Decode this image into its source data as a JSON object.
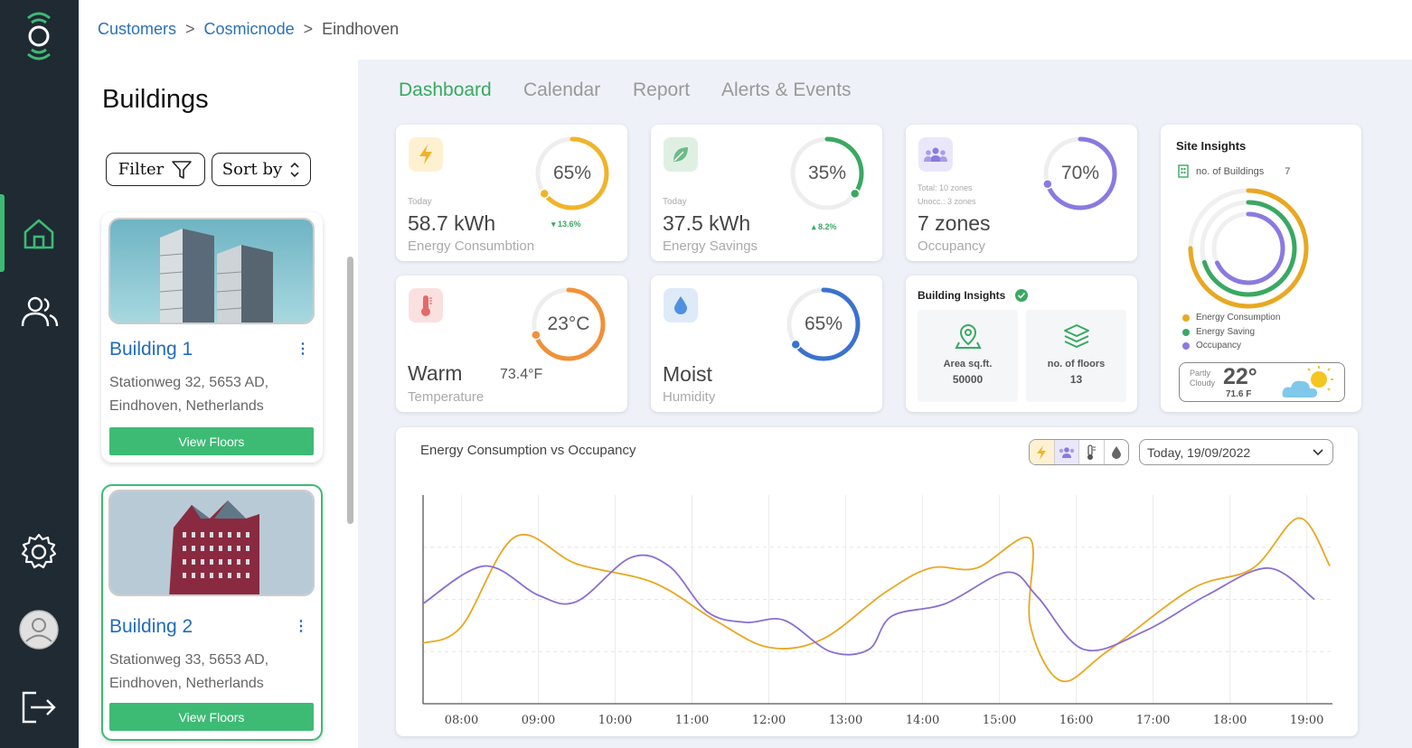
{
  "breadcrumb": {
    "items": [
      "Customers",
      "Cosmicnode",
      "Eindhoven"
    ]
  },
  "left_panel": {
    "title": "Buildings",
    "filter_label": "Filter",
    "sort_label": "Sort by",
    "buildings": [
      {
        "name": "Building 1",
        "address_line1": "Stationweg 32, 5653 AD,",
        "address_line2": "Eindhoven, Netherlands",
        "button": "View Floors"
      },
      {
        "name": "Building 2",
        "address_line1": "Stationweg 33, 5653 AD,",
        "address_line2": "Eindhoven, Netherlands",
        "button": "View Floors"
      }
    ]
  },
  "tabs": [
    "Dashboard",
    "Calendar",
    "Report",
    "Alerts & Events"
  ],
  "kpis": {
    "energy": {
      "percent_label": "65%",
      "percent": 0.65,
      "small": "Today",
      "value": "58.7 kWh",
      "label": "Energy Consumbtion",
      "delta": "13.6%",
      "color": "#f0b429"
    },
    "savings": {
      "percent_label": "35%",
      "percent": 0.35,
      "small": "Today",
      "value": "37.5 kWh",
      "label": "Energy Savings",
      "delta": "8.2%",
      "color": "#3aa862"
    },
    "occupancy": {
      "percent_label": "70%",
      "percent": 0.7,
      "small1": "Total: 10 zones",
      "small2": "Unocc.: 3 zones",
      "value": "7 zones",
      "label": "Occupancy",
      "color": "#8a7ae0"
    },
    "temperature": {
      "percent_label": "23°C",
      "percent": 0.7,
      "value": "Warm",
      "extra": "73.4°F",
      "label": "Temperature",
      "color": "#f0913a"
    },
    "humidity": {
      "percent_label": "65%",
      "percent": 0.65,
      "value": "Moist",
      "label": "Humidity",
      "color": "#3a72d0"
    }
  },
  "building_insights": {
    "title": "Building Insights",
    "area_label": "Area sq.ft.",
    "area_value": "50000",
    "floors_label": "no. of floors",
    "floors_value": "13"
  },
  "site_insights": {
    "title": "Site Insights",
    "buildings_label": "no. of Buildings",
    "buildings_value": "7",
    "legend": [
      "Energy Consumption",
      "Energy Saving",
      "Occupancy"
    ],
    "ring_levels": [
      0.75,
      0.7,
      0.68
    ],
    "weather_desc1": "Partly",
    "weather_desc2": "Cloudy",
    "temp_c": "22°",
    "temp_f": "71.6 F"
  },
  "chart_section": {
    "title": "Energy Consumption vs Occupancy",
    "date_select": "Today, 19/09/2022",
    "toggle_icons": [
      "bolt-icon",
      "people-icon",
      "thermometer-icon",
      "drop-icon"
    ]
  },
  "chart_data": {
    "type": "line",
    "x": [
      "08:00",
      "09:00",
      "10:00",
      "11:00",
      "12:00",
      "13:00",
      "14:00",
      "15:00",
      "16:00",
      "17:00",
      "18:00",
      "19:00"
    ],
    "xlim": [
      "07:30",
      "19:20"
    ],
    "ylim": [
      0,
      100
    ],
    "series": [
      {
        "color": "#e8a822",
        "points": [
          [
            7.5,
            29
          ],
          [
            8.0,
            37
          ],
          [
            8.7,
            80
          ],
          [
            9.5,
            67
          ],
          [
            10.5,
            58
          ],
          [
            11.3,
            40
          ],
          [
            12.0,
            27
          ],
          [
            12.7,
            31
          ],
          [
            13.5,
            53
          ],
          [
            14.1,
            65
          ],
          [
            14.7,
            65
          ],
          [
            15.4,
            79
          ],
          [
            15.4,
            38
          ],
          [
            15.8,
            11
          ],
          [
            16.4,
            25
          ],
          [
            17.5,
            55
          ],
          [
            18.3,
            65
          ],
          [
            18.9,
            89
          ],
          [
            19.3,
            66
          ]
        ]
      },
      {
        "color": "#8a6fd0",
        "points": [
          [
            7.5,
            48
          ],
          [
            8.3,
            66
          ],
          [
            9.0,
            52
          ],
          [
            9.5,
            49
          ],
          [
            10.2,
            70
          ],
          [
            10.7,
            66
          ],
          [
            11.2,
            44
          ],
          [
            11.7,
            39
          ],
          [
            12.2,
            40
          ],
          [
            12.8,
            25
          ],
          [
            13.3,
            26
          ],
          [
            13.6,
            42
          ],
          [
            14.3,
            48
          ],
          [
            15.1,
            63
          ],
          [
            15.5,
            51
          ],
          [
            16.1,
            26
          ],
          [
            16.9,
            35
          ],
          [
            17.7,
            52
          ],
          [
            18.5,
            65
          ],
          [
            19.1,
            50
          ]
        ]
      }
    ]
  }
}
